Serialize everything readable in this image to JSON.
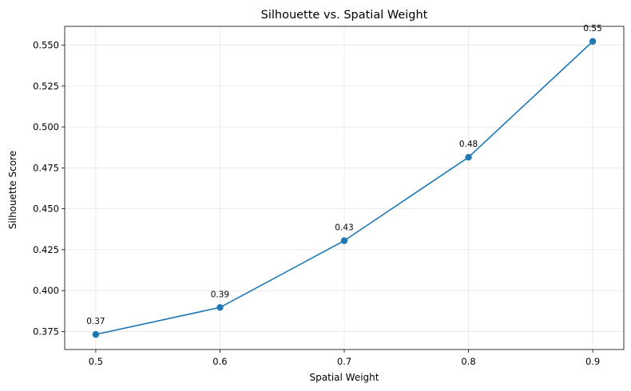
{
  "chart_data": {
    "type": "line",
    "title": "Silhouette vs. Spatial Weight",
    "xlabel": "Spatial Weight",
    "ylabel": "Silhouette Score",
    "xlim": [
      0.475,
      0.925
    ],
    "ylim": [
      0.364,
      0.5615
    ],
    "grid": true,
    "legend": "none",
    "x_ticks": [
      0.5,
      0.6,
      0.7,
      0.8,
      0.9
    ],
    "x_tick_labels": [
      "0.5",
      "0.6",
      "0.7",
      "0.8",
      "0.9"
    ],
    "y_ticks": [
      0.375,
      0.4,
      0.425,
      0.45,
      0.475,
      0.5,
      0.525,
      0.55
    ],
    "y_tick_labels": [
      "0.375",
      "0.400",
      "0.425",
      "0.450",
      "0.475",
      "0.500",
      "0.525",
      "0.550"
    ],
    "series": [
      {
        "color": "#1f77b4",
        "x": [
          0.5,
          0.6,
          0.7,
          0.8,
          0.9
        ],
        "values": [
          0.3732,
          0.3897,
          0.4305,
          0.4815,
          0.5523
        ],
        "data_labels": [
          "0.37",
          "0.39",
          "0.43",
          "0.48",
          "0.55"
        ]
      }
    ]
  }
}
